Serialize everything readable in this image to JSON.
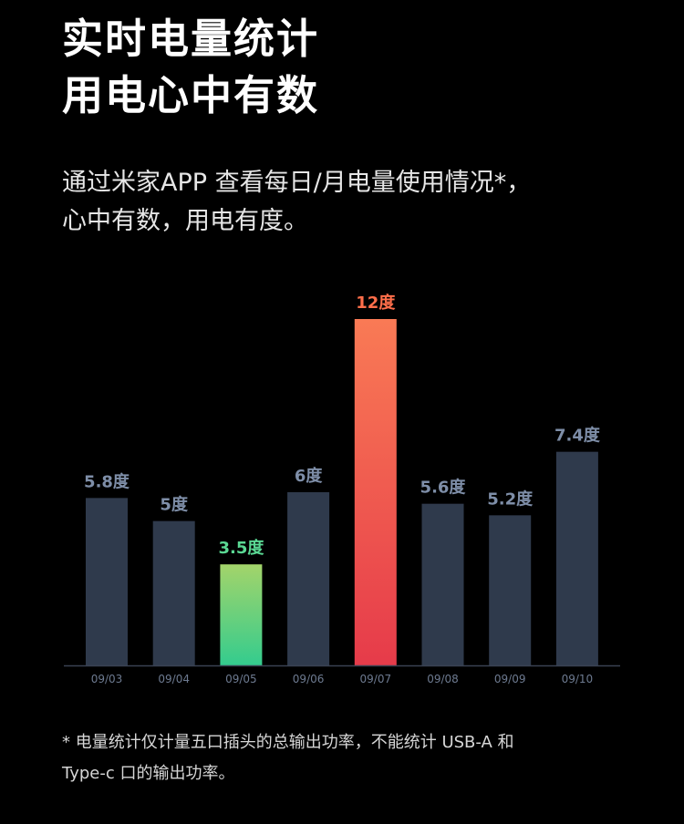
{
  "header": {
    "title_line1": "实时电量统计",
    "title_line2": "用电心中有数"
  },
  "description": {
    "line1": "通过米家APP 查看每日/月电量使用情况*，",
    "line2": "心中有数，用电有度。"
  },
  "chart_data": {
    "type": "bar",
    "categories": [
      "09/03",
      "09/04",
      "09/05",
      "09/06",
      "09/07",
      "09/08",
      "09/09",
      "09/10"
    ],
    "values": [
      5.8,
      5,
      3.5,
      6,
      12,
      5.6,
      5.2,
      7.4
    ],
    "data_labels": [
      "5.8度",
      "5度",
      "3.5度",
      "6度",
      "12度",
      "5.6度",
      "5.2度",
      "7.4度"
    ],
    "unit": "度",
    "ylim": [
      0,
      12
    ],
    "grid": false,
    "highlights": {
      "max": {
        "index": 4,
        "gradient": [
          "#f97a55",
          "#e63b4a"
        ],
        "label_color": "#ff6e4a"
      },
      "min": {
        "index": 2,
        "gradient": [
          "#a3d46a",
          "#34cc8e"
        ],
        "label_color": "#5ad893"
      }
    },
    "colors": {
      "bar": "#2f3a4c",
      "label": "#7e8ea8",
      "axis": "#3a4252",
      "tick": "#6d7a90"
    }
  },
  "footnote": {
    "line1": "* 电量统计仅计量五口插头的总输出功率，不能统计 USB-A 和",
    "line2": "Type-c 口的输出功率。"
  }
}
